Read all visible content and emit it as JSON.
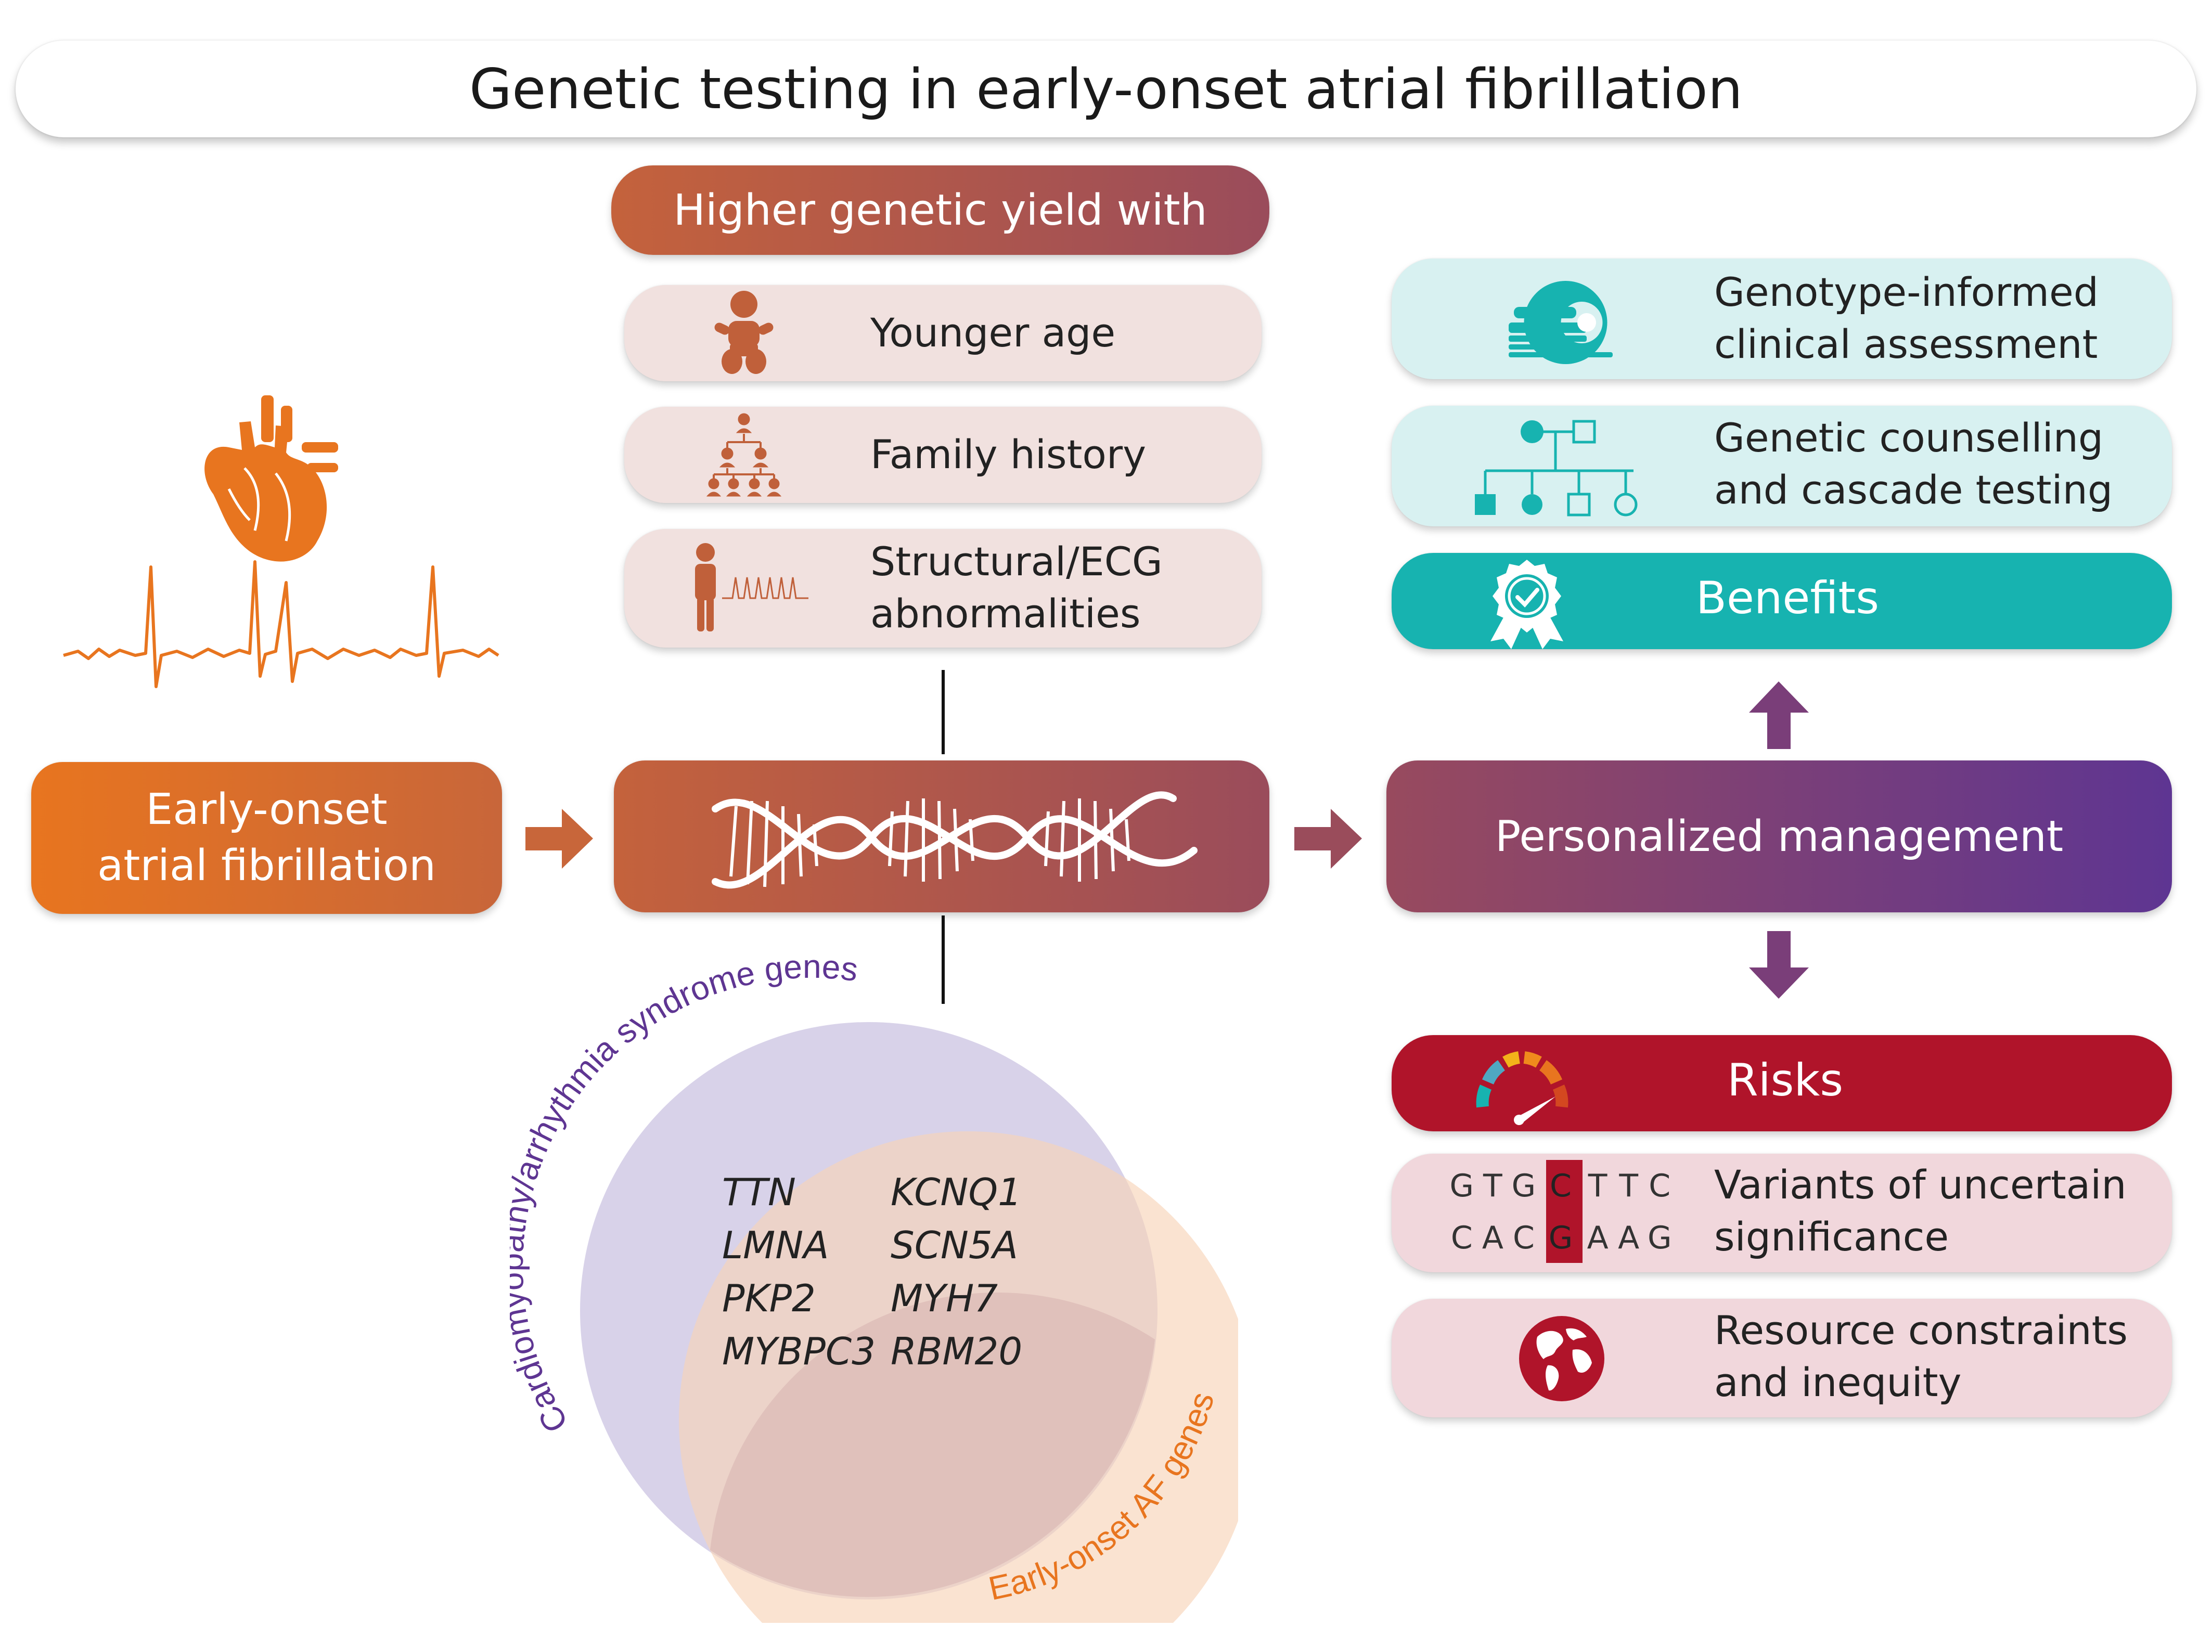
{
  "title": "Genetic testing in early-onset atrial fibrillation",
  "yield": {
    "header": "Higher genetic yield with",
    "items": [
      {
        "label": "Younger age",
        "icon": "baby-icon"
      },
      {
        "label": "Family history",
        "icon": "family-tree-icon"
      },
      {
        "label_line1": "Structural/ECG",
        "label_line2": "abnormalities",
        "icon": "person-ecg-icon"
      }
    ]
  },
  "start": {
    "line1": "Early-onset",
    "line2": "atrial fibrillation"
  },
  "management": "Personalized management",
  "benefits": {
    "header": "Benefits",
    "items": [
      {
        "line1": "Genotype-informed",
        "line2": "clinical assessment",
        "icon": "mri-scanner-icon"
      },
      {
        "line1": "Genetic counselling",
        "line2": "and cascade testing",
        "icon": "pedigree-icon"
      }
    ]
  },
  "risks": {
    "header": "Risks",
    "items": [
      {
        "line1": "Variants of uncertain",
        "line2": "significance",
        "icon": "dna-sequence-icon",
        "seq_top": [
          "G",
          "T",
          "G",
          "C",
          "T",
          "T",
          "C"
        ],
        "seq_bottom": [
          "C",
          "A",
          "C",
          "G",
          "A",
          "A",
          "G"
        ]
      },
      {
        "line1": "Resource constraints",
        "line2": "and inequity",
        "icon": "globe-icon"
      }
    ]
  },
  "venn": {
    "label_a": "Cardiomyopathy/arrhythmia syndrome genes",
    "label_b": "Early-onset AF genes",
    "genes_left": [
      "TTN",
      "LMNA",
      "PKP2",
      "MYBPC3"
    ],
    "genes_right": [
      "KCNQ1",
      "SCN5A",
      "MYH7",
      "RBM20"
    ]
  },
  "colors": {
    "orange": "#e8751f",
    "rust": "#c0603a",
    "mauve": "#9a4d5c",
    "purple": "#5e3592",
    "teal": "#17b3b0",
    "teal_light": "#d8f1f1",
    "red": "#b0142a",
    "red_light": "#f1d7dc",
    "peach_light": "#f2e0df"
  }
}
